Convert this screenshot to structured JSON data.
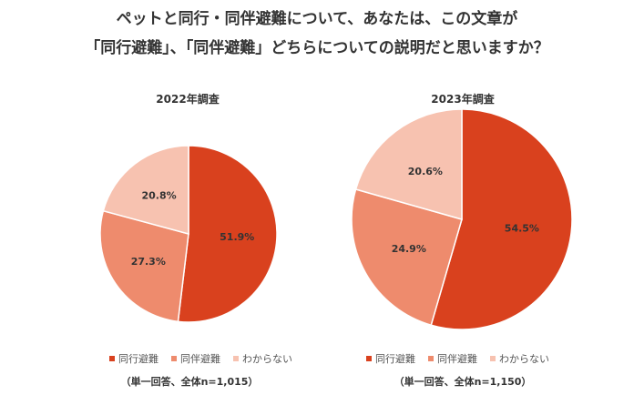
{
  "title": {
    "line1": "ペットと同行・同伴避難について、あなたは、この文章が",
    "line2": "「同行避難」、「同伴避難」どちらについての説明だと思いますか？"
  },
  "colors": {
    "same_trip": "#d9411e",
    "accompany": "#ee8b6d",
    "unknown": "#f7c2b0"
  },
  "chart_data": [
    {
      "type": "pie",
      "title": "2022年調査",
      "categories": [
        "同行避難",
        "同伴避難",
        "わからない"
      ],
      "values": [
        51.9,
        27.3,
        20.8
      ],
      "labels": [
        "51.9%",
        "27.3%",
        "20.8%"
      ],
      "note": "（単一回答、全体n=1,015）",
      "legend_position": "bottom"
    },
    {
      "type": "pie",
      "title": "2023年調査",
      "categories": [
        "同行避難",
        "同伴避難",
        "わからない"
      ],
      "values": [
        54.5,
        24.9,
        20.6
      ],
      "labels": [
        "54.5%",
        "24.9%",
        "20.6%"
      ],
      "note": "（単一回答、全体n=1,150）",
      "legend_position": "bottom"
    }
  ]
}
